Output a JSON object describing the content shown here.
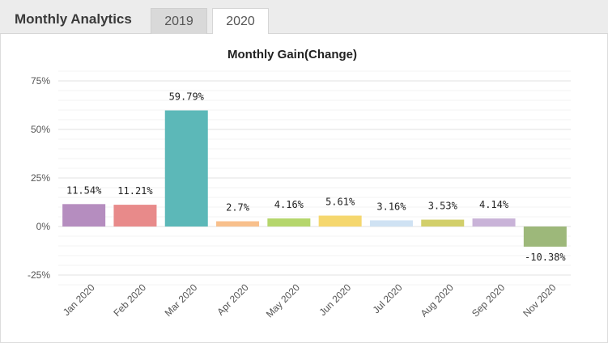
{
  "header": {
    "title": "Monthly Analytics",
    "tabs": [
      {
        "label": "2019",
        "active": false
      },
      {
        "label": "2020",
        "active": true
      }
    ]
  },
  "chart_data": {
    "type": "bar",
    "title": "Monthly Gain(Change)",
    "categories": [
      "Jan 2020",
      "Feb 2020",
      "Mar 2020",
      "Apr 2020",
      "May 2020",
      "Jun 2020",
      "Jul 2020",
      "Aug 2020",
      "Sep 2020",
      "Nov 2020"
    ],
    "values": [
      11.54,
      11.21,
      59.79,
      2.7,
      4.16,
      5.61,
      3.16,
      3.53,
      4.14,
      -10.38
    ],
    "value_labels": [
      "11.54%",
      "11.21%",
      "59.79%",
      "2.7%",
      "4.16%",
      "5.61%",
      "3.16%",
      "3.53%",
      "4.14%",
      "-10.38%"
    ],
    "colors": [
      "#b58dbf",
      "#e88a8a",
      "#5cb8b8",
      "#f8c08c",
      "#b5d66c",
      "#f5d76e",
      "#cfe2f3",
      "#d2cf6a",
      "#c9b3d8",
      "#9db87a"
    ],
    "yticks": [
      -25,
      0,
      25,
      50,
      75
    ],
    "ytick_labels": [
      "-25%",
      "0%",
      "25%",
      "50%",
      "75%"
    ],
    "ylim": [
      -30,
      80
    ],
    "grid": true,
    "legend": "none",
    "xlabel": "",
    "ylabel": ""
  }
}
